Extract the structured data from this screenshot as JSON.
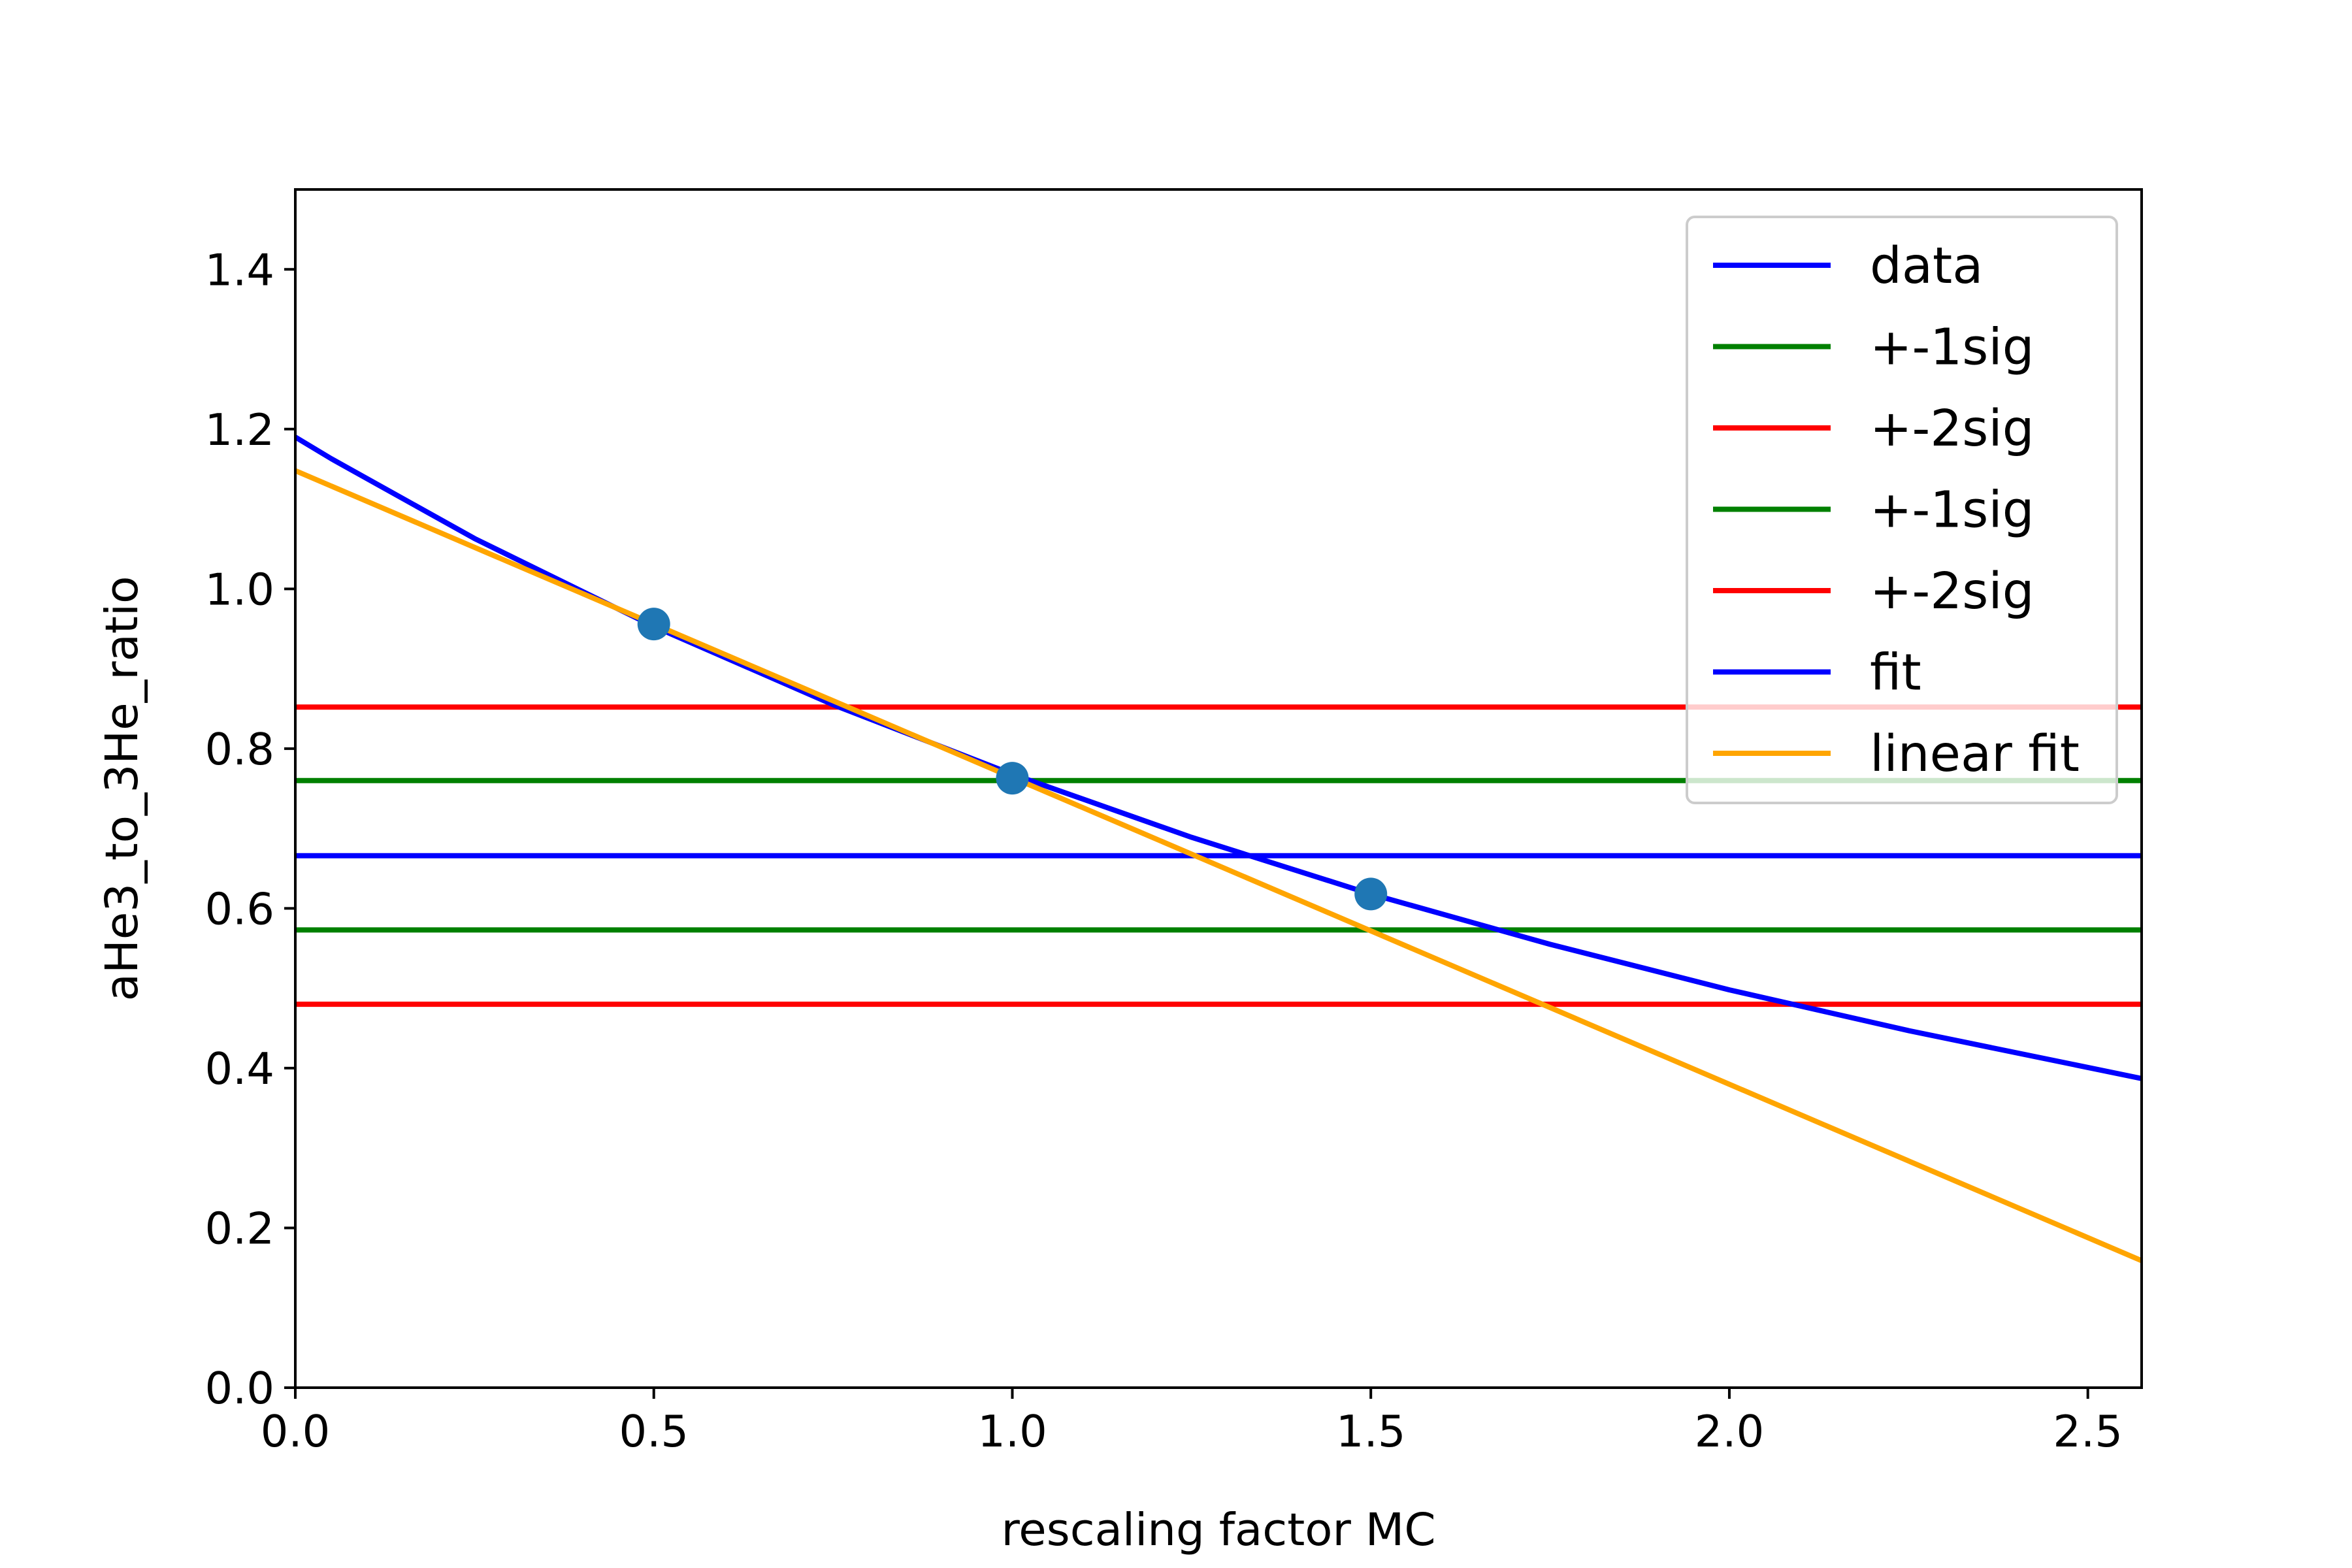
{
  "chart_data": {
    "type": "line",
    "title": "",
    "xlabel": "rescaling factor MC",
    "ylabel": "aHe3_to_3He_ratio",
    "xlim": [
      0.0,
      2.575
    ],
    "ylim": [
      0.0,
      1.5
    ],
    "xticks": [
      0.0,
      0.5,
      1.0,
      1.5,
      2.0,
      2.5
    ],
    "xtick_labels": [
      "0.0",
      "0.5",
      "1.0",
      "1.5",
      "2.0",
      "2.5"
    ],
    "yticks": [
      0.0,
      0.2,
      0.4,
      0.6,
      0.8,
      1.0,
      1.2,
      1.4
    ],
    "ytick_labels": [
      "0.0",
      "0.2",
      "0.4",
      "0.6",
      "0.8",
      "1.0",
      "1.2",
      "1.4"
    ],
    "grid": false,
    "legend_position": "top-right",
    "points": {
      "color": "#1f77b4",
      "x": [
        0.5,
        1.0,
        1.5
      ],
      "y": [
        0.956,
        0.763,
        0.618
      ]
    },
    "series": [
      {
        "name": "data",
        "color": "#0000ff",
        "kind": "hline",
        "y": 0.666
      },
      {
        "name": "+-1sig",
        "color": "#008000",
        "kind": "hline",
        "y": 0.76
      },
      {
        "name": "+-2sig",
        "color": "#ff0000",
        "kind": "hline",
        "y": 0.852
      },
      {
        "name": "+-1sig",
        "color": "#008000",
        "kind": "hline",
        "y": 0.573
      },
      {
        "name": "+-2sig",
        "color": "#ff0000",
        "kind": "hline",
        "y": 0.48
      },
      {
        "name": "fit",
        "color": "#0000ff",
        "kind": "curve",
        "x": [
          0.0,
          0.05,
          0.25,
          0.5,
          0.75,
          1.0,
          1.25,
          1.5,
          1.75,
          2.0,
          2.25,
          2.575
        ],
        "y": [
          1.19,
          1.163,
          1.063,
          0.953,
          0.855,
          0.768,
          0.689,
          0.618,
          0.555,
          0.498,
          0.447,
          0.387
        ]
      },
      {
        "name": "linear fit",
        "color": "#ffa500",
        "kind": "curve",
        "x": [
          0.0,
          2.575
        ],
        "y": [
          1.148,
          0.159
        ]
      }
    ]
  }
}
